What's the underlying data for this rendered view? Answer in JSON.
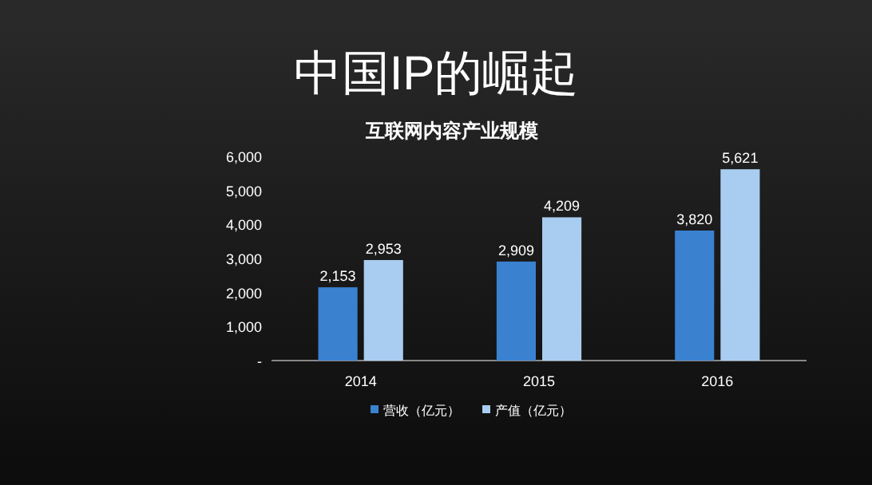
{
  "chart_data": {
    "type": "bar",
    "title": "中国IP的崛起",
    "subtitle": "互联网内容产业规模",
    "categories": [
      "2014",
      "2015",
      "2016"
    ],
    "series": [
      {
        "name": "营收（亿元）",
        "color": "#3a82d0",
        "values": [
          2153,
          2909,
          3820
        ],
        "value_labels": [
          "2,153",
          "2,909",
          "3,820"
        ]
      },
      {
        "name": "产值（亿元）",
        "color": "#a9cdf0",
        "values": [
          2953,
          4209,
          5621
        ],
        "value_labels": [
          "2,953",
          "4,209",
          "5,621"
        ]
      }
    ],
    "ylim": [
      0,
      6000
    ],
    "yticks": [
      {
        "value": 0,
        "label": "-"
      },
      {
        "value": 1000,
        "label": "1,000"
      },
      {
        "value": 2000,
        "label": "2,000"
      },
      {
        "value": 3000,
        "label": "3,000"
      },
      {
        "value": 4000,
        "label": "4,000"
      },
      {
        "value": 5000,
        "label": "5,000"
      },
      {
        "value": 6000,
        "label": "6,000"
      }
    ],
    "grid": false,
    "legend": "bottom"
  }
}
